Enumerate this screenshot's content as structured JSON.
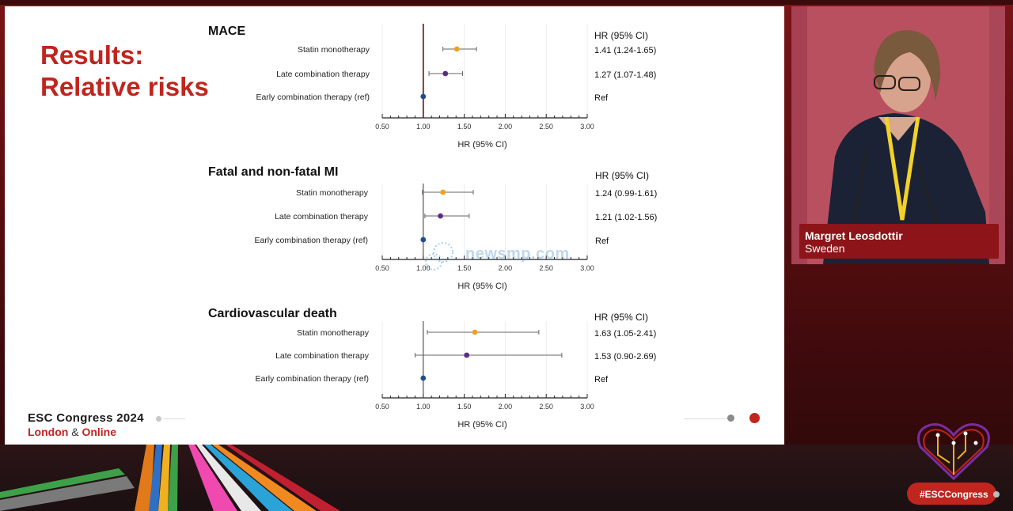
{
  "slide": {
    "title_line1": "Results:",
    "title_line2": "Relative risks",
    "hr_header": "HR (95% CI)",
    "axis_label": "HR (95% CI)",
    "brand_line1": "ESC Congress 2024",
    "brand_line2_a": "London",
    "brand_line2_amp": "&",
    "brand_line2_b": "Online",
    "watermark": "newsmp.com"
  },
  "speaker": {
    "name": "Margret Leosdottir",
    "country": "Sweden"
  },
  "hashtag": "#ESCCongress",
  "colors": {
    "accent_red": "#c0251e",
    "statin_marker": "#f0a020",
    "late_marker": "#5b2d82",
    "early_marker": "#1f4e8c"
  },
  "chart_data": [
    {
      "type": "forest",
      "title": "MACE",
      "xlim": [
        0.5,
        3.0
      ],
      "ticks": [
        "0.50",
        "1.00",
        "1.50",
        "2.00",
        "2.50",
        "3.00"
      ],
      "xlabel": "HR (95% CI)",
      "reference_line": 1.0,
      "rows": [
        {
          "label": "Statin monotherapy",
          "hr": 1.41,
          "low": 1.24,
          "high": 1.65,
          "text": "1.41 (1.24-1.65)",
          "color": "#f0a020"
        },
        {
          "label": "Late combination therapy",
          "hr": 1.27,
          "low": 1.07,
          "high": 1.48,
          "text": "1.27 (1.07-1.48)",
          "color": "#5b2d82"
        },
        {
          "label": "Early combination therapy (ref)",
          "hr": 1.0,
          "low": null,
          "high": null,
          "text": "Ref",
          "color": "#1f4e8c"
        }
      ]
    },
    {
      "type": "forest",
      "title": "Fatal and non-fatal MI",
      "xlim": [
        0.5,
        3.0
      ],
      "ticks": [
        "0.50",
        "1.00",
        "1.50",
        "2.00",
        "2.50",
        "3.00"
      ],
      "xlabel": "HR (95% CI)",
      "reference_line": 1.0,
      "rows": [
        {
          "label": "Statin monotherapy",
          "hr": 1.24,
          "low": 0.99,
          "high": 1.61,
          "text": "1.24 (0.99-1.61)",
          "color": "#f0a020"
        },
        {
          "label": "Late combination therapy",
          "hr": 1.21,
          "low": 1.02,
          "high": 1.56,
          "text": "1.21 (1.02-1.56)",
          "color": "#5b2d82"
        },
        {
          "label": "Early combination therapy (ref)",
          "hr": 1.0,
          "low": null,
          "high": null,
          "text": "Ref",
          "color": "#1f4e8c"
        }
      ]
    },
    {
      "type": "forest",
      "title": "Cardiovascular death",
      "xlim": [
        0.5,
        3.0
      ],
      "ticks": [
        "0.50",
        "1.00",
        "1.50",
        "2.00",
        "2.50",
        "3.00"
      ],
      "xlabel": "HR (95% CI)",
      "reference_line": 1.0,
      "rows": [
        {
          "label": "Statin monotherapy",
          "hr": 1.63,
          "low": 1.05,
          "high": 2.41,
          "text": "1.63 (1.05-2.41)",
          "color": "#f0a020"
        },
        {
          "label": "Late combination therapy",
          "hr": 1.53,
          "low": 0.9,
          "high": 2.69,
          "text": "1.53 (0.90-2.69)",
          "color": "#5b2d82"
        },
        {
          "label": "Early combination therapy (ref)",
          "hr": 1.0,
          "low": null,
          "high": null,
          "text": "Ref",
          "color": "#1f4e8c"
        }
      ]
    }
  ]
}
